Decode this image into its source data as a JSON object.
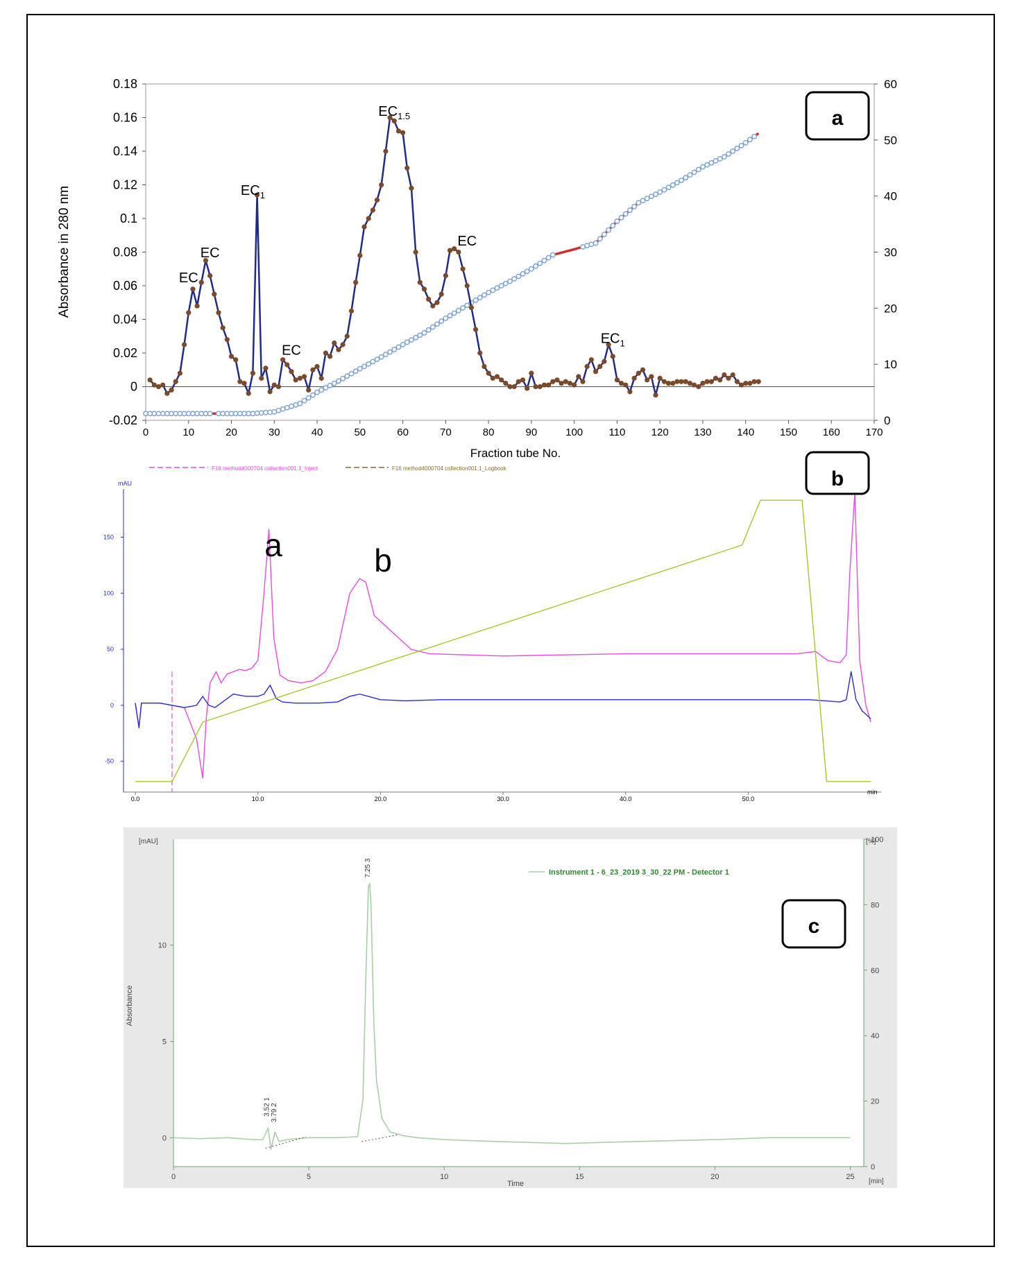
{
  "chart_data": [
    {
      "panel": "a",
      "panel_tag": "a",
      "type": "line",
      "xlabel": "Fraction tube No.",
      "ylabel": "Absorbance in 280 nm",
      "xlim": [
        0,
        170
      ],
      "ylim": [
        -0.02,
        0.18
      ],
      "y2lim": [
        0,
        60
      ],
      "x_ticks": [
        "0",
        "10",
        "20",
        "30",
        "40",
        "50",
        "60",
        "70",
        "80",
        "90",
        "100",
        "110",
        "120",
        "130",
        "140",
        "150",
        "160",
        "170"
      ],
      "y_ticks": [
        "-0.02",
        "0",
        "0.02",
        "0.04",
        "0.06",
        "0.08",
        "0.1",
        "0.12",
        "0.14",
        "0.16",
        "0.18"
      ],
      "y2_ticks": [
        "0",
        "10",
        "20",
        "30",
        "40",
        "50",
        "60"
      ],
      "annotations": [
        {
          "base": "EC",
          "sub": "",
          "x": 10,
          "y": 0.062
        },
        {
          "base": "EC",
          "sub": "",
          "x": 15,
          "y": 0.077
        },
        {
          "base": "EC",
          "sub": "1",
          "x": 25,
          "y": 0.114
        },
        {
          "base": "EC",
          "sub": "",
          "x": 34,
          "y": 0.019
        },
        {
          "base": "EC",
          "sub": "1.5",
          "x": 58,
          "y": 0.161
        },
        {
          "base": "EC",
          "sub": "",
          "x": 75,
          "y": 0.084
        },
        {
          "base": "EC",
          "sub": "1",
          "x": 109,
          "y": 0.026
        }
      ],
      "series": [
        {
          "color": "#1f2a8a",
          "marker_color": "#7a4a2a",
          "axis": "left",
          "x": [
            1,
            2,
            3,
            4,
            5,
            6,
            7,
            8,
            9,
            10,
            11,
            12,
            13,
            14,
            15,
            16,
            17,
            18,
            19,
            20,
            21,
            22,
            23,
            24,
            25,
            26,
            27,
            28,
            29,
            30,
            31,
            32,
            33,
            34,
            35,
            36,
            37,
            38,
            39,
            40,
            41,
            42,
            43,
            44,
            45,
            46,
            47,
            48,
            49,
            50,
            51,
            52,
            53,
            54,
            55,
            56,
            57,
            58,
            59,
            60,
            61,
            62,
            63,
            64,
            65,
            66,
            67,
            68,
            69,
            70,
            71,
            72,
            73,
            74,
            75,
            76,
            77,
            78,
            79,
            80,
            81,
            82,
            83,
            84,
            85,
            86,
            87,
            88,
            89,
            90,
            91,
            92,
            93,
            94,
            95,
            96,
            97,
            98,
            99,
            100,
            101,
            102,
            103,
            104,
            105,
            106,
            107,
            108,
            109,
            110,
            111,
            112,
            113,
            114,
            115,
            116,
            117,
            118,
            119,
            120,
            121,
            122,
            123,
            124,
            125,
            126,
            127,
            128,
            129,
            130,
            131,
            132,
            133,
            134,
            135,
            136,
            137,
            138,
            139,
            140,
            141,
            142,
            143
          ],
          "y": [
            0.004,
            0.001,
            0.0,
            0.001,
            -0.004,
            -0.002,
            0.003,
            0.008,
            0.025,
            0.044,
            0.058,
            0.048,
            0.062,
            0.075,
            0.066,
            0.055,
            0.044,
            0.035,
            0.028,
            0.018,
            0.016,
            0.003,
            0.002,
            -0.004,
            0.008,
            0.114,
            0.005,
            0.011,
            -0.003,
            0.001,
            0.0,
            0.016,
            0.013,
            0.009,
            0.004,
            0.005,
            0.006,
            -0.002,
            0.01,
            0.012,
            0.005,
            0.02,
            0.018,
            0.026,
            0.022,
            0.025,
            0.03,
            0.045,
            0.062,
            0.078,
            0.095,
            0.1,
            0.105,
            0.111,
            0.12,
            0.14,
            0.16,
            0.158,
            0.152,
            0.151,
            0.13,
            0.118,
            0.08,
            0.062,
            0.058,
            0.052,
            0.048,
            0.05,
            0.055,
            0.066,
            0.081,
            0.082,
            0.08,
            0.07,
            0.06,
            0.047,
            0.034,
            0.02,
            0.012,
            0.008,
            0.005,
            0.006,
            0.004,
            0.002,
            0.0,
            0.0,
            0.003,
            0.004,
            -0.001,
            0.008,
            0.0,
            0.0,
            0.001,
            0.001,
            0.003,
            0.004,
            0.002,
            0.003,
            0.002,
            0.001,
            0.006,
            0.003,
            0.012,
            0.016,
            0.009,
            0.012,
            0.015,
            0.025,
            0.018,
            0.004,
            0.002,
            0.001,
            -0.003,
            0.005,
            0.008,
            0.01,
            0.004,
            0.006,
            -0.005,
            0.005,
            0.003,
            0.002,
            0.002,
            0.003,
            0.003,
            0.003,
            0.002,
            0.001,
            0.0,
            0.002,
            0.003,
            0.003,
            0.005,
            0.004,
            0.007,
            0.005,
            0.007,
            0.003,
            0.001,
            0.002,
            0.002,
            0.003,
            0.003
          ]
        },
        {
          "color": "#7fa6d6",
          "line_color": "#d42a2a",
          "axis": "right",
          "x": [
            0,
            16,
            17,
            20,
            25,
            30,
            36,
            40,
            45,
            50,
            55,
            60,
            65,
            70,
            75,
            80,
            85,
            90,
            95,
            100,
            105,
            110,
            115,
            120,
            125,
            130,
            135,
            140,
            143
          ],
          "y": [
            1.2,
            1.2,
            1.2,
            1.2,
            1.2,
            1.5,
            3.0,
            5.0,
            7.0,
            9.2,
            11.3,
            13.5,
            15.6,
            18.2,
            20.5,
            22.8,
            24.8,
            27.0,
            29.5,
            30.5,
            31.6,
            35.5,
            38.8,
            40.7,
            42.8,
            45.2,
            47.0,
            49.5,
            51.2
          ]
        }
      ]
    },
    {
      "panel": "b",
      "panel_tag": "b",
      "type": "line",
      "legend_items": [
        {
          "label": "F16 method4000704 collection001:1_Inject",
          "color": "#e84be0"
        },
        {
          "label": "F16 method4000704 collection001:1_Logbook",
          "color": "#8a6a2a"
        }
      ],
      "unit_label": "mAU",
      "x_unit": "min",
      "xlim": [
        0,
        60
      ],
      "ylim": [
        -70,
        185
      ],
      "x_ticks": [
        "0.0",
        "10.0",
        "20.0",
        "30.0",
        "40.0",
        "50.0"
      ],
      "y_ticks": [
        "-50",
        "0",
        "50",
        "100",
        "150"
      ],
      "peak_labels": [
        "a",
        "b"
      ],
      "series": [
        {
          "color": "#e84be0",
          "x": [
            0,
            0.3,
            0.5,
            1,
            2,
            3,
            4,
            5,
            5.5,
            5.8,
            6.1,
            6.6,
            7,
            7.5,
            8,
            8.5,
            9,
            9.5,
            10,
            10.5,
            10.9,
            11.3,
            11.8,
            12.5,
            13.5,
            14.5,
            15.5,
            16.5,
            17.5,
            18.3,
            18.8,
            19.5,
            20.5,
            21.5,
            22.5,
            24,
            27,
            30,
            35,
            40,
            45,
            50,
            54,
            55.5,
            56.5,
            57.5,
            58,
            58.3,
            58.7,
            59.1,
            59.6,
            60
          ],
          "y": [
            2,
            -20,
            2,
            2,
            2,
            0,
            -2,
            -30,
            -65,
            -10,
            20,
            30,
            20,
            28,
            30,
            32,
            31,
            33,
            40,
            100,
            157,
            60,
            27,
            22,
            20,
            22,
            30,
            50,
            100,
            113,
            110,
            80,
            70,
            60,
            50,
            46,
            45,
            44,
            45,
            46,
            46,
            46,
            46,
            48,
            40,
            38,
            45,
            120,
            190,
            40,
            0,
            -15
          ]
        },
        {
          "color": "#2a2ae0",
          "x": [
            0,
            0.3,
            0.5,
            1,
            2,
            3,
            4,
            5,
            5.5,
            6,
            6.5,
            7,
            8,
            9,
            10,
            10.5,
            11,
            11.5,
            12,
            13,
            15,
            16.5,
            17.5,
            18.3,
            19,
            20,
            22,
            25,
            30,
            35,
            40,
            45,
            50,
            55,
            57.5,
            58,
            58.4,
            58.8,
            59.3,
            60
          ],
          "y": [
            2,
            -20,
            2,
            2,
            2,
            0,
            -2,
            0,
            8,
            0,
            -2,
            2,
            10,
            8,
            8,
            10,
            18,
            6,
            3,
            2,
            2,
            3,
            8,
            10,
            8,
            5,
            4,
            5,
            5,
            5,
            5,
            5,
            5,
            5,
            3,
            5,
            30,
            5,
            -5,
            -12
          ]
        },
        {
          "color": "#a2c92a",
          "x": [
            0,
            3,
            5.5,
            49.5,
            51,
            54.4,
            56.4,
            60
          ],
          "y": [
            -68,
            -68,
            -15,
            143,
            183,
            183,
            -68,
            -68
          ]
        }
      ]
    },
    {
      "panel": "c",
      "panel_tag": "c",
      "type": "line",
      "legend": "Instrument 1 - 6_23_2019 3_30_22 PM - Detector 1",
      "unit_left": "[mAU]",
      "unit_right": "[%]",
      "ylabel": "Absorbance",
      "xlabel": "Time",
      "x_unit": "[min]",
      "xlim": [
        0,
        25.5
      ],
      "ylim": [
        -1.5,
        15.5
      ],
      "y2lim": [
        0,
        100
      ],
      "x_ticks": [
        "0",
        "5",
        "10",
        "15",
        "20",
        "25"
      ],
      "y_ticks": [
        "0",
        "5",
        "10"
      ],
      "y2_ticks": [
        "0",
        "20",
        "40",
        "60",
        "80",
        "100"
      ],
      "peak_labels": [
        "3.52  1",
        "3.79  2",
        "7.25  3"
      ],
      "series": [
        {
          "color": "#a9cfa5",
          "x": [
            0,
            1,
            2,
            3,
            3.3,
            3.5,
            3.6,
            3.75,
            3.9,
            4.2,
            4.6,
            5,
            6,
            6.8,
            7.0,
            7.1,
            7.2,
            7.25,
            7.3,
            7.4,
            7.5,
            7.7,
            8.0,
            8.5,
            9,
            10,
            12,
            14.5,
            17,
            20,
            22,
            25
          ],
          "y": [
            0,
            -0.05,
            0,
            -0.1,
            -0.1,
            0.5,
            -0.6,
            0.3,
            -0.2,
            -0.1,
            -0.05,
            0,
            0,
            0.05,
            2,
            8,
            13,
            13.2,
            12,
            6,
            3,
            1,
            0.3,
            0.1,
            0,
            -0.1,
            -0.2,
            -0.3,
            -0.2,
            -0.1,
            0,
            0
          ]
        }
      ]
    }
  ]
}
